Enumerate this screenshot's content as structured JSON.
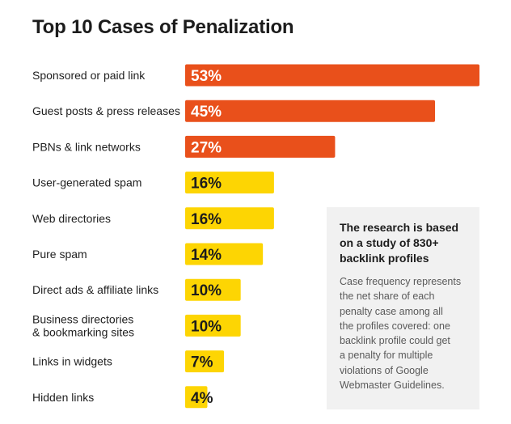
{
  "title": "Top 10 Cases of Penalization",
  "colors": {
    "high": "#e9501b",
    "low": "#fdd503",
    "high_text": "#ffffff",
    "low_text": "#1c1c1c"
  },
  "note": {
    "heading_lines": [
      "The research is based",
      "on a study of 830+",
      "backlink profiles"
    ],
    "body_lines": [
      "Case frequency represents",
      "the net share of each",
      "penalty case among all",
      "the profiles covered: one",
      "backlink profile could get",
      "a penalty for multiple",
      "violations of Google",
      "Webmaster Guidelines."
    ]
  },
  "chart_data": {
    "type": "bar",
    "orientation": "horizontal",
    "title": "Top 10 Cases of Penalization",
    "categories": [
      [
        "Sponsored or paid link"
      ],
      [
        "Guest posts & press releases"
      ],
      [
        "PBNs & link networks"
      ],
      [
        "User-generated spam"
      ],
      [
        "Web directories"
      ],
      [
        "Pure spam"
      ],
      [
        "Direct ads & affiliate links"
      ],
      [
        "Business directories",
        "& bookmarking sites"
      ],
      [
        "Links in widgets"
      ],
      [
        "Hidden links"
      ]
    ],
    "values": [
      53,
      45,
      27,
      16,
      16,
      14,
      10,
      10,
      7,
      4
    ],
    "value_labels": [
      "53%",
      "45%",
      "27%",
      "16%",
      "16%",
      "14%",
      "10%",
      "10%",
      "7%",
      "4%"
    ],
    "unit": "%",
    "xlim": [
      0,
      53
    ],
    "grid": false,
    "legend": "none"
  }
}
